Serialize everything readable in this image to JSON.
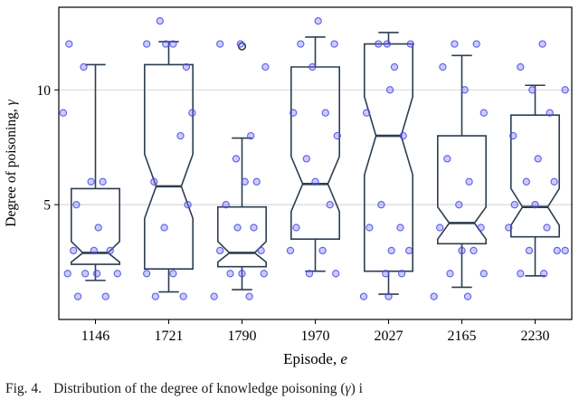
{
  "caption": {
    "label": "Fig. 4.",
    "text_before": "Distribution of the degree of knowledge poisoning (",
    "symbol": "γ",
    "text_after": ") i"
  },
  "chart_data": {
    "type": "boxplot+scatter",
    "title": "",
    "xlabel": "Episode, e",
    "xlabel_prefix": "Episode, ",
    "xlabel_symbol": "e",
    "ylabel": "Degree of poisoning, γ",
    "ylabel_prefix": "Degree of poisoning, ",
    "ylabel_symbol": "γ",
    "categories": [
      "1146",
      "1721",
      "1790",
      "1970",
      "2027",
      "2165",
      "2230"
    ],
    "ylim": [
      0,
      13.6
    ],
    "yticks": [
      5,
      10
    ],
    "grid": "horizontal-at-yticks",
    "legend": "none",
    "colors": {
      "box": "#2c3e50",
      "point_fill": "#6b6bff",
      "point_stroke": "#4646e0",
      "grid": "#d9d9d9",
      "frame": "#000000"
    },
    "boxes": [
      {
        "category": "1146",
        "whisker_low": 1.7,
        "q1": 2.4,
        "median": 2.9,
        "q3": 5.7,
        "whisker_high": 11.1,
        "notch_low": 2.5,
        "notch_high": 3.4,
        "outliers": []
      },
      {
        "category": "1721",
        "whisker_low": 1.2,
        "q1": 2.2,
        "median": 5.8,
        "q3": 11.1,
        "whisker_high": 12.1,
        "notch_low": 4.4,
        "notch_high": 7.2,
        "outliers": []
      },
      {
        "category": "1790",
        "whisker_low": 1.3,
        "q1": 2.3,
        "median": 2.9,
        "q3": 4.9,
        "whisker_high": 7.9,
        "notch_low": 2.5,
        "notch_high": 3.4,
        "outliers": [
          11.9
        ]
      },
      {
        "category": "1970",
        "whisker_low": 2.1,
        "q1": 3.5,
        "median": 5.9,
        "q3": 11.0,
        "whisker_high": 12.3,
        "notch_low": 4.7,
        "notch_high": 7.1,
        "outliers": []
      },
      {
        "category": "2027",
        "whisker_low": 1.1,
        "q1": 2.1,
        "median": 8.0,
        "q3": 12.0,
        "whisker_high": 12.5,
        "notch_low": 6.3,
        "notch_high": 9.7,
        "outliers": []
      },
      {
        "category": "2165",
        "whisker_low": 1.4,
        "q1": 3.3,
        "median": 4.2,
        "q3": 8.0,
        "whisker_high": 11.5,
        "notch_low": 3.5,
        "notch_high": 4.9,
        "outliers": []
      },
      {
        "category": "2230",
        "whisker_low": 1.9,
        "q1": 3.6,
        "median": 4.9,
        "q3": 8.9,
        "whisker_high": 10.2,
        "notch_low": 4.1,
        "notch_high": 5.7,
        "outliers": []
      }
    ],
    "points_format": "[category_index, x_jitter_fraction_of_slot, y_value]",
    "points": [
      [
        0,
        -0.36,
        12
      ],
      [
        0,
        -0.16,
        11
      ],
      [
        0,
        -0.44,
        9
      ],
      [
        0,
        0.1,
        6
      ],
      [
        0,
        -0.06,
        6
      ],
      [
        0,
        -0.26,
        5
      ],
      [
        0,
        0.04,
        4
      ],
      [
        0,
        -0.3,
        3
      ],
      [
        0,
        0.2,
        3
      ],
      [
        0,
        -0.02,
        3
      ],
      [
        0,
        -0.38,
        2
      ],
      [
        0,
        0.3,
        2
      ],
      [
        0,
        0.02,
        2
      ],
      [
        0,
        -0.14,
        2
      ],
      [
        0,
        0.14,
        1
      ],
      [
        0,
        -0.24,
        1
      ],
      [
        1,
        -0.12,
        13
      ],
      [
        1,
        -0.3,
        12
      ],
      [
        1,
        0.06,
        12
      ],
      [
        1,
        -0.04,
        12
      ],
      [
        1,
        0.24,
        11
      ],
      [
        1,
        0.32,
        9
      ],
      [
        1,
        0.16,
        8
      ],
      [
        1,
        -0.2,
        6
      ],
      [
        1,
        0.26,
        5
      ],
      [
        1,
        -0.06,
        4
      ],
      [
        1,
        -0.3,
        2
      ],
      [
        1,
        0.06,
        2
      ],
      [
        1,
        0.2,
        1
      ],
      [
        1,
        -0.18,
        1
      ],
      [
        2,
        -0.3,
        12
      ],
      [
        2,
        -0.02,
        12
      ],
      [
        2,
        0.32,
        11
      ],
      [
        2,
        0.12,
        8
      ],
      [
        2,
        -0.08,
        7
      ],
      [
        2,
        0.2,
        6
      ],
      [
        2,
        0.04,
        6
      ],
      [
        2,
        -0.22,
        5
      ],
      [
        2,
        0.16,
        4
      ],
      [
        2,
        -0.06,
        4
      ],
      [
        2,
        0.26,
        3
      ],
      [
        2,
        -0.3,
        3
      ],
      [
        2,
        0.0,
        2
      ],
      [
        2,
        -0.16,
        2
      ],
      [
        2,
        0.3,
        2
      ],
      [
        2,
        -0.38,
        1
      ],
      [
        2,
        0.1,
        1
      ],
      [
        3,
        0.04,
        13
      ],
      [
        3,
        -0.2,
        12
      ],
      [
        3,
        0.26,
        12
      ],
      [
        3,
        -0.04,
        11
      ],
      [
        3,
        0.14,
        9
      ],
      [
        3,
        -0.3,
        9
      ],
      [
        3,
        0.3,
        8
      ],
      [
        3,
        -0.12,
        7
      ],
      [
        3,
        0.0,
        6
      ],
      [
        3,
        0.2,
        5
      ],
      [
        3,
        -0.26,
        4
      ],
      [
        3,
        0.1,
        3
      ],
      [
        3,
        -0.34,
        3
      ],
      [
        3,
        0.28,
        2
      ],
      [
        3,
        -0.08,
        2
      ],
      [
        4,
        -0.14,
        12
      ],
      [
        4,
        -0.02,
        12
      ],
      [
        4,
        0.3,
        12
      ],
      [
        4,
        0.08,
        11
      ],
      [
        4,
        0.02,
        10
      ],
      [
        4,
        -0.3,
        9
      ],
      [
        4,
        0.2,
        8
      ],
      [
        4,
        -0.1,
        5
      ],
      [
        4,
        0.16,
        4
      ],
      [
        4,
        -0.26,
        4
      ],
      [
        4,
        0.04,
        3
      ],
      [
        4,
        0.28,
        3
      ],
      [
        4,
        -0.04,
        2
      ],
      [
        4,
        0.18,
        2
      ],
      [
        4,
        -0.34,
        1
      ],
      [
        4,
        0.0,
        1
      ],
      [
        5,
        -0.1,
        12
      ],
      [
        5,
        0.2,
        12
      ],
      [
        5,
        -0.26,
        11
      ],
      [
        5,
        0.04,
        10
      ],
      [
        5,
        0.3,
        9
      ],
      [
        5,
        -0.2,
        7
      ],
      [
        5,
        0.1,
        6
      ],
      [
        5,
        -0.04,
        5
      ],
      [
        5,
        0.26,
        4
      ],
      [
        5,
        -0.3,
        4
      ],
      [
        5,
        0.0,
        3
      ],
      [
        5,
        0.16,
        3
      ],
      [
        5,
        -0.16,
        2
      ],
      [
        5,
        0.3,
        2
      ],
      [
        5,
        -0.38,
        1
      ],
      [
        5,
        0.08,
        1
      ],
      [
        6,
        0.1,
        12
      ],
      [
        6,
        -0.2,
        11
      ],
      [
        6,
        0.41,
        10
      ],
      [
        6,
        -0.04,
        10
      ],
      [
        6,
        0.2,
        9
      ],
      [
        6,
        -0.3,
        8
      ],
      [
        6,
        0.04,
        7
      ],
      [
        6,
        0.26,
        6
      ],
      [
        6,
        -0.12,
        6
      ],
      [
        6,
        0.0,
        5
      ],
      [
        6,
        -0.28,
        5
      ],
      [
        6,
        0.16,
        4
      ],
      [
        6,
        -0.36,
        4
      ],
      [
        6,
        0.3,
        3
      ],
      [
        6,
        -0.08,
        3
      ],
      [
        6,
        0.12,
        2
      ],
      [
        6,
        -0.2,
        2
      ],
      [
        6,
        0.41,
        3
      ]
    ]
  }
}
